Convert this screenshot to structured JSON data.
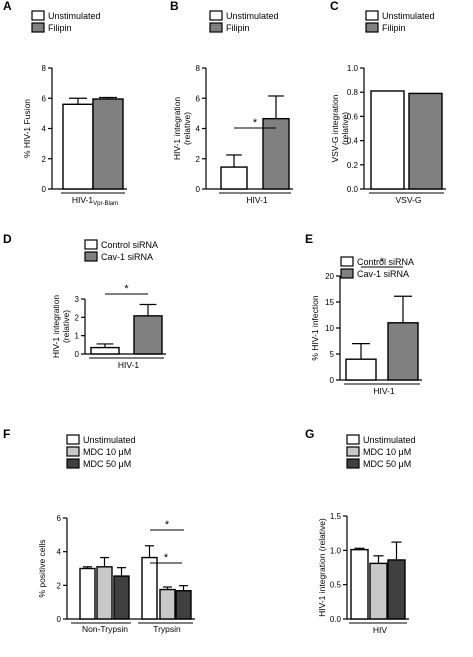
{
  "chart_data": [
    {
      "panel": "A",
      "type": "bar",
      "ylabel": "% HIV-1 Fusion",
      "group_label": "HIV-1",
      "group_sub": "Vpr-Blam",
      "ylim": [
        0,
        8
      ],
      "yticks": [
        "0",
        "2",
        "4",
        "6",
        "8"
      ],
      "legend": [
        "Unstimulated",
        "Filipin"
      ],
      "series": [
        {
          "name": "Unstimulated",
          "color": "#ffffff",
          "value": 5.6,
          "err": 0.4
        },
        {
          "name": "Filipin",
          "color": "#808080",
          "value": 5.95,
          "err": 0.1
        }
      ]
    },
    {
      "panel": "B",
      "type": "bar",
      "ylabel": "HIV-1 integration",
      "ylabel2": "(relative)",
      "group_label": "HIV-1",
      "ylim": [
        0,
        8
      ],
      "yticks": [
        "0",
        "2",
        "4",
        "6",
        "8"
      ],
      "legend": [
        "Unstimulated",
        "Filipin"
      ],
      "significance": [
        "*"
      ],
      "series": [
        {
          "name": "Unstimulated",
          "color": "#ffffff",
          "value": 1.45,
          "err": 0.8
        },
        {
          "name": "Filipin",
          "color": "#808080",
          "value": 4.65,
          "err": 1.5
        }
      ]
    },
    {
      "panel": "C",
      "type": "bar",
      "ylabel": "VSV-G integration",
      "ylabel2": "(relative)",
      "group_label": "VSV-G",
      "ylim": [
        0,
        1.0
      ],
      "yticks": [
        "0.0",
        "0.2",
        "0.4",
        "0.6",
        "0.8",
        "1.0"
      ],
      "legend": [
        "Unstimulated",
        "Filipin"
      ],
      "series": [
        {
          "name": "Unstimulated",
          "color": "#ffffff",
          "value": 0.81,
          "err": 0
        },
        {
          "name": "Filipin",
          "color": "#808080",
          "value": 0.79,
          "err": 0
        }
      ]
    },
    {
      "panel": "D",
      "type": "bar",
      "ylabel": "HIV-1 integration",
      "ylabel2": "(relative)",
      "group_label": "HIV-1",
      "ylim": [
        0,
        3
      ],
      "yticks": [
        "0",
        "1",
        "2",
        "3"
      ],
      "legend": [
        "Control siRNA",
        "Cav-1 siRNA"
      ],
      "significance": [
        "*"
      ],
      "series": [
        {
          "name": "Control siRNA",
          "color": "#ffffff",
          "value": 0.35,
          "err": 0.2
        },
        {
          "name": "Cav-1 siRNA",
          "color": "#808080",
          "value": 2.08,
          "err": 0.62
        }
      ]
    },
    {
      "panel": "E",
      "type": "bar",
      "ylabel": "% HIV-1 infection",
      "group_label": "HIV-1",
      "ylim": [
        0,
        20
      ],
      "yticks": [
        "0",
        "5",
        "10",
        "15",
        "20"
      ],
      "legend": [
        "Control siRNA",
        "Cav-1 siRNA"
      ],
      "significance": [
        "*"
      ],
      "series": [
        {
          "name": "Control siRNA",
          "color": "#ffffff",
          "value": 4.0,
          "err": 3.0
        },
        {
          "name": "Cav-1 siRNA",
          "color": "#808080",
          "value": 11.0,
          "err": 5.1
        }
      ]
    },
    {
      "panel": "F",
      "type": "bar",
      "ylabel": "% positive cells",
      "categories": [
        "Non-Trypsin",
        "Trypsin"
      ],
      "ylim": [
        0,
        6
      ],
      "yticks": [
        "0",
        "2",
        "4",
        "6"
      ],
      "legend": [
        "Unstimulated",
        "MDC 10 μM",
        "MDC 50 μM"
      ],
      "significance": [
        "*",
        "*"
      ],
      "series": [
        {
          "name": "Unstimulated",
          "color": "#ffffff",
          "values": [
            3.0,
            3.65
          ],
          "errs": [
            0.1,
            0.7
          ]
        },
        {
          "name": "MDC 10 μM",
          "color": "#c8c8c8",
          "values": [
            3.1,
            1.75
          ],
          "errs": [
            0.55,
            0.15
          ]
        },
        {
          "name": "MDC 50 μM",
          "color": "#404040",
          "values": [
            2.55,
            1.68
          ],
          "errs": [
            0.5,
            0.3
          ]
        }
      ]
    },
    {
      "panel": "G",
      "type": "bar",
      "ylabel": "HIV-1 integration (relative)",
      "group_label": "HIV",
      "ylim": [
        0,
        1.5
      ],
      "yticks": [
        "0.0",
        "0.5",
        "1.0",
        "1.5"
      ],
      "legend": [
        "Unstimulated",
        "MDC 10 μM",
        "MDC 50 μM"
      ],
      "series": [
        {
          "name": "Unstimulated",
          "color": "#ffffff",
          "value": 1.01,
          "err": 0.02
        },
        {
          "name": "MDC 10 μM",
          "color": "#c8c8c8",
          "value": 0.81,
          "err": 0.11
        },
        {
          "name": "MDC 50 μM",
          "color": "#404040",
          "value": 0.86,
          "err": 0.26
        }
      ]
    }
  ]
}
